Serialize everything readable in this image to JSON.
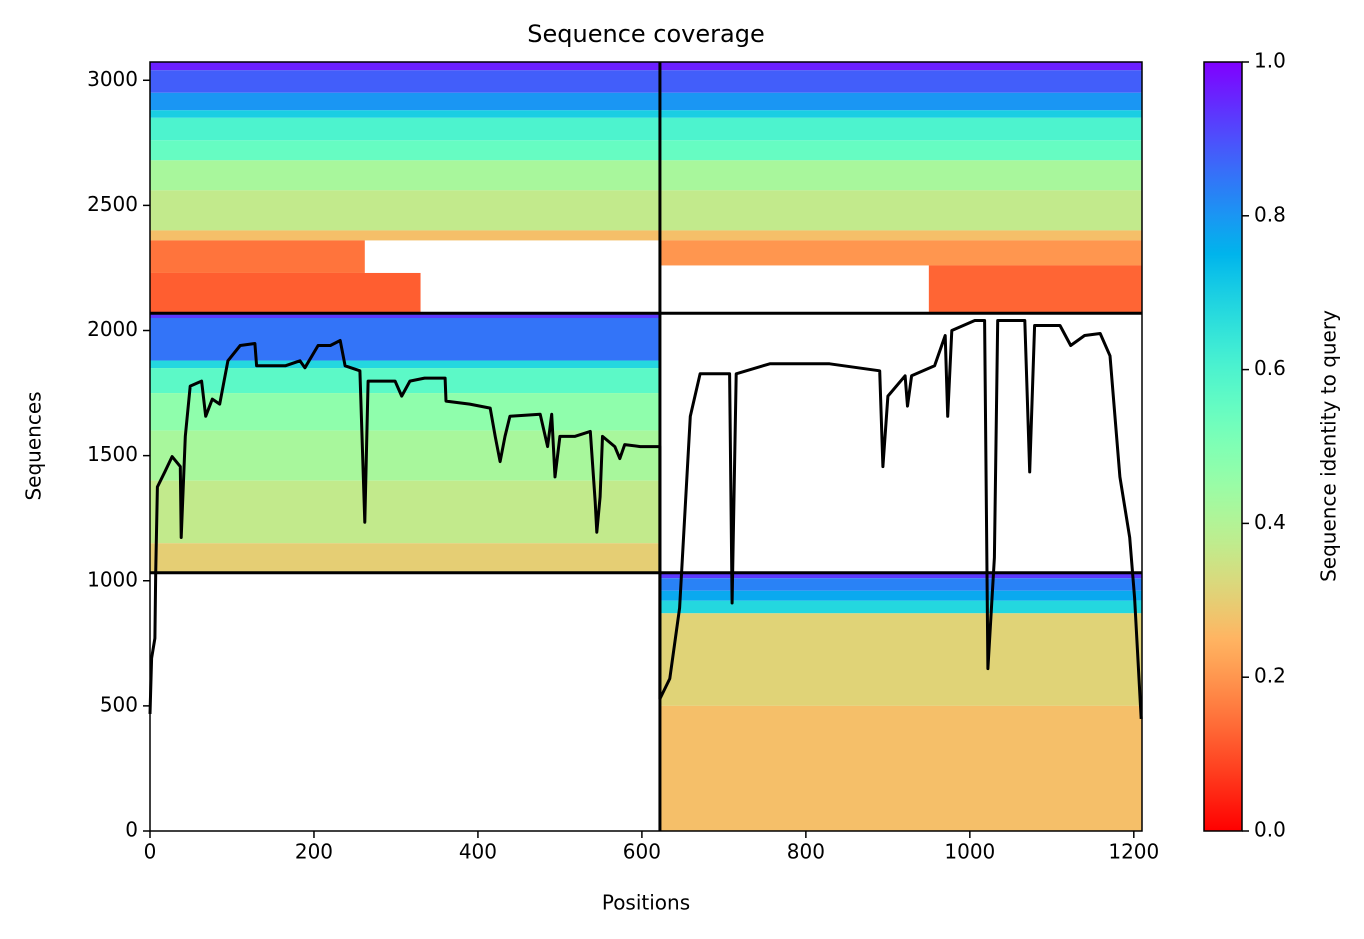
{
  "chart_data": {
    "type": "coverage",
    "title": "Sequence coverage",
    "xlabel": "Positions",
    "ylabel": "Sequences",
    "colorbar_label": "Sequence identity to query",
    "colormap": "rainbow_r",
    "xlim": [
      0,
      1210
    ],
    "ylim": [
      0,
      3073
    ],
    "xticks": [
      0,
      200,
      400,
      600,
      800,
      1000,
      1200
    ],
    "yticks": [
      0,
      500,
      1000,
      1500,
      2000,
      2500,
      3000
    ],
    "clim": [
      0,
      1
    ],
    "cticks": [
      {
        "value": 0,
        "label": "0.0"
      },
      {
        "value": 0.2,
        "label": "0.2"
      },
      {
        "value": 0.4,
        "label": "0.4"
      },
      {
        "value": 0.6,
        "label": "0.6"
      },
      {
        "value": 0.8,
        "label": "0.8"
      },
      {
        "value": 1,
        "label": "1.0"
      }
    ],
    "boundaries_x": [
      622
    ],
    "boundaries_y": [
      1032,
      2069
    ],
    "bands": [
      {
        "x0": 0,
        "x1": 622,
        "y0": 3040,
        "y1": 3073,
        "identity": 0.96
      },
      {
        "x0": 0,
        "x1": 622,
        "y0": 2950,
        "y1": 3040,
        "identity": 0.88
      },
      {
        "x0": 0,
        "x1": 622,
        "y0": 2880,
        "y1": 2950,
        "identity": 0.8
      },
      {
        "x0": 0,
        "x1": 622,
        "y0": 2850,
        "y1": 2880,
        "identity": 0.7
      },
      {
        "x0": 0,
        "x1": 622,
        "y0": 2760,
        "y1": 2850,
        "identity": 0.6
      },
      {
        "x0": 0,
        "x1": 622,
        "y0": 2680,
        "y1": 2760,
        "identity": 0.55
      },
      {
        "x0": 0,
        "x1": 622,
        "y0": 2560,
        "y1": 2680,
        "identity": 0.42
      },
      {
        "x0": 0,
        "x1": 622,
        "y0": 2400,
        "y1": 2560,
        "identity": 0.37
      },
      {
        "x0": 0,
        "x1": 622,
        "y0": 2360,
        "y1": 2400,
        "identity": 0.27
      },
      {
        "x0": 0,
        "x1": 262,
        "y0": 2230,
        "y1": 2360,
        "identity": 0.15
      },
      {
        "x0": 0,
        "x1": 330,
        "y0": 2069,
        "y1": 2230,
        "identity": 0.12
      },
      {
        "x0": 622,
        "x1": 1210,
        "y0": 3040,
        "y1": 3073,
        "identity": 0.96
      },
      {
        "x0": 622,
        "x1": 1210,
        "y0": 2950,
        "y1": 3040,
        "identity": 0.88
      },
      {
        "x0": 622,
        "x1": 1210,
        "y0": 2880,
        "y1": 2950,
        "identity": 0.8
      },
      {
        "x0": 622,
        "x1": 1210,
        "y0": 2850,
        "y1": 2880,
        "identity": 0.7
      },
      {
        "x0": 622,
        "x1": 1210,
        "y0": 2760,
        "y1": 2850,
        "identity": 0.6
      },
      {
        "x0": 622,
        "x1": 1210,
        "y0": 2680,
        "y1": 2760,
        "identity": 0.55
      },
      {
        "x0": 622,
        "x1": 1210,
        "y0": 2560,
        "y1": 2680,
        "identity": 0.42
      },
      {
        "x0": 622,
        "x1": 1210,
        "y0": 2400,
        "y1": 2560,
        "identity": 0.37
      },
      {
        "x0": 622,
        "x1": 1210,
        "y0": 2360,
        "y1": 2400,
        "identity": 0.27
      },
      {
        "x0": 622,
        "x1": 1210,
        "y0": 2260,
        "y1": 2360,
        "identity": 0.2
      },
      {
        "x0": 950,
        "x1": 1210,
        "y0": 2069,
        "y1": 2260,
        "identity": 0.13
      },
      {
        "x0": 0,
        "x1": 622,
        "y0": 2050,
        "y1": 2069,
        "identity": 0.93
      },
      {
        "x0": 0,
        "x1": 622,
        "y0": 1880,
        "y1": 2050,
        "identity": 0.85
      },
      {
        "x0": 0,
        "x1": 622,
        "y0": 1850,
        "y1": 1880,
        "identity": 0.68
      },
      {
        "x0": 0,
        "x1": 622,
        "y0": 1750,
        "y1": 1850,
        "identity": 0.57
      },
      {
        "x0": 0,
        "x1": 622,
        "y0": 1600,
        "y1": 1750,
        "identity": 0.47
      },
      {
        "x0": 0,
        "x1": 622,
        "y0": 1400,
        "y1": 1600,
        "identity": 0.42
      },
      {
        "x0": 0,
        "x1": 622,
        "y0": 1150,
        "y1": 1400,
        "identity": 0.37
      },
      {
        "x0": 0,
        "x1": 622,
        "y0": 1032,
        "y1": 1150,
        "identity": 0.3
      },
      {
        "x0": 622,
        "x1": 1210,
        "y0": 1010,
        "y1": 1032,
        "identity": 0.93
      },
      {
        "x0": 622,
        "x1": 1210,
        "y0": 960,
        "y1": 1010,
        "identity": 0.83
      },
      {
        "x0": 622,
        "x1": 1210,
        "y0": 920,
        "y1": 960,
        "identity": 0.77
      },
      {
        "x0": 622,
        "x1": 1210,
        "y0": 870,
        "y1": 920,
        "identity": 0.68
      },
      {
        "x0": 622,
        "x1": 1210,
        "y0": 500,
        "y1": 870,
        "identity": 0.31
      },
      {
        "x0": 622,
        "x1": 1210,
        "y0": 0,
        "y1": 500,
        "identity": 0.27
      }
    ],
    "line": {
      "color": "#000000",
      "x": [
        0,
        2,
        6,
        7,
        9,
        18,
        27,
        37,
        38,
        43,
        49,
        63,
        68,
        76,
        85,
        95,
        110,
        128,
        130,
        165,
        183,
        189,
        205,
        220,
        232,
        238,
        256,
        262,
        266,
        280,
        299,
        307,
        317,
        335,
        360,
        361,
        390,
        415,
        421,
        427,
        433,
        439,
        476,
        485,
        490,
        494,
        500,
        518,
        537,
        543,
        545,
        549,
        552,
        567,
        573,
        579,
        598,
        622,
        622,
        634,
        646,
        659,
        671,
        707,
        710,
        715,
        756,
        829,
        890,
        894,
        900,
        921,
        924,
        929,
        957,
        970,
        973,
        978,
        1006,
        1018,
        1022,
        1030,
        1034,
        1067,
        1073,
        1079,
        1110,
        1123,
        1140,
        1159,
        1171,
        1183,
        1195,
        1201,
        1209
      ],
      "y": [
        468,
        690,
        770,
        1032,
        1375,
        1435,
        1496,
        1456,
        1173,
        1577,
        1778,
        1798,
        1657,
        1726,
        1706,
        1879,
        1940,
        1948,
        1859,
        1859,
        1879,
        1851,
        1940,
        1940,
        1960,
        1859,
        1839,
        1234,
        1798,
        1798,
        1798,
        1738,
        1798,
        1810,
        1810,
        1718,
        1706,
        1690,
        1577,
        1476,
        1577,
        1657,
        1665,
        1536,
        1665,
        1415,
        1577,
        1577,
        1597,
        1315,
        1194,
        1335,
        1577,
        1536,
        1488,
        1544,
        1536,
        1536,
        528,
        609,
        891,
        1657,
        1827,
        1827,
        911,
        1827,
        1867,
        1867,
        1839,
        1456,
        1738,
        1819,
        1698,
        1819,
        1859,
        1980,
        1657,
        2000,
        2040,
        2040,
        649,
        1093,
        2040,
        2040,
        1435,
        2020,
        2020,
        1940,
        1980,
        1988,
        1899,
        1415,
        1173,
        931,
        448
      ]
    }
  }
}
